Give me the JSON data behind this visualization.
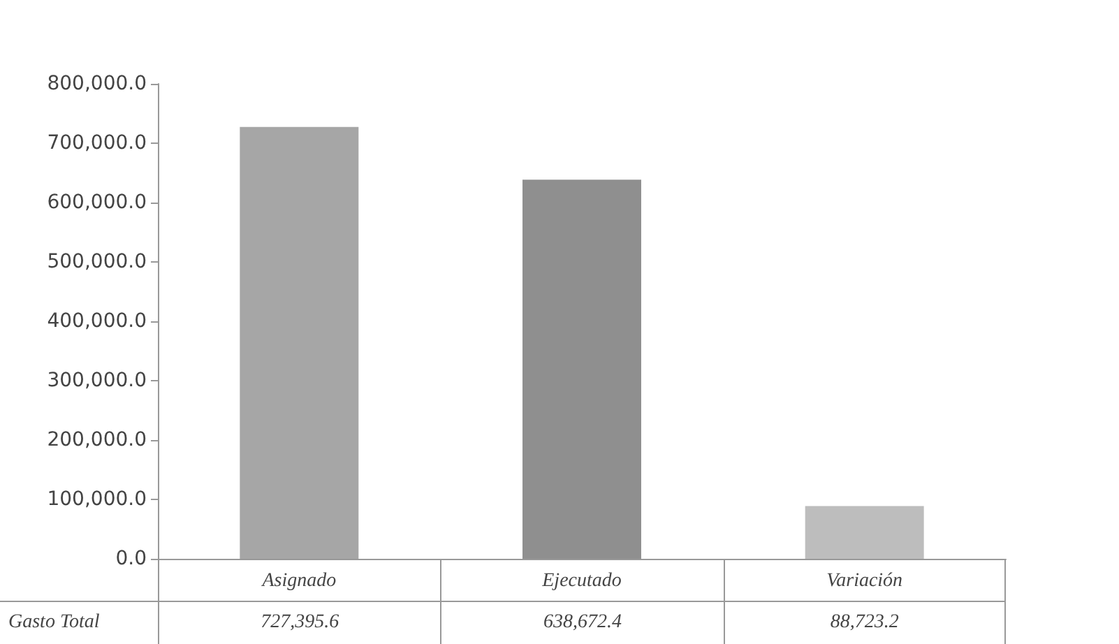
{
  "chart_data": {
    "type": "bar",
    "categories": [
      "Asignado",
      "Ejecutado",
      "Variación"
    ],
    "series": [
      {
        "name": "Gasto Total",
        "colors": [
          "#a6a6a6",
          "#8f8f8f",
          "#bdbdbd"
        ],
        "values": [
          727395.6,
          638672.4,
          88723.2
        ],
        "value_labels": [
          "727,395.6",
          "638,672.4",
          "88,723.2"
        ]
      }
    ],
    "ylim": [
      0,
      800000
    ],
    "yticks": [
      {
        "value": 0,
        "label": "0.0"
      },
      {
        "value": 100000,
        "label": "100,000.0"
      },
      {
        "value": 200000,
        "label": "200,000.0"
      },
      {
        "value": 300000,
        "label": "300,000.0"
      },
      {
        "value": 400000,
        "label": "400,000.0"
      },
      {
        "value": 500000,
        "label": "500,000.0"
      },
      {
        "value": 600000,
        "label": "600,000.0"
      },
      {
        "value": 700000,
        "label": "700,000.0"
      },
      {
        "value": 800000,
        "label": "800,000.0"
      }
    ],
    "grid": false,
    "legend": false
  }
}
